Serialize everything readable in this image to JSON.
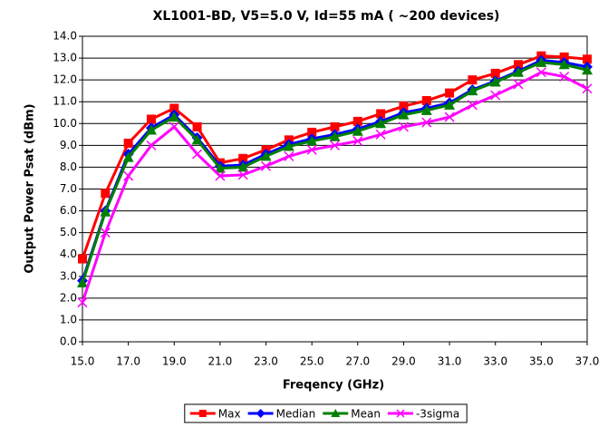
{
  "chart_data": {
    "type": "line",
    "title": "XL1001-BD, V5=5.0 V, Id=55 mA ( ~200 devices)",
    "xlabel": "Freqency (GHz)",
    "ylabel": "Output Power Psat (dBm)",
    "x": [
      15,
      16,
      17,
      18,
      19,
      20,
      21,
      22,
      23,
      24,
      25,
      26,
      27,
      28,
      29,
      30,
      31,
      32,
      33,
      34,
      35,
      36,
      37
    ],
    "series": [
      {
        "name": "Max",
        "color": "#ff0000",
        "marker": "square",
        "values": [
          3.8,
          6.8,
          9.1,
          10.2,
          10.7,
          9.85,
          8.2,
          8.4,
          8.8,
          9.25,
          9.6,
          9.85,
          10.1,
          10.45,
          10.8,
          11.05,
          11.4,
          12.0,
          12.3,
          12.7,
          13.1,
          13.05,
          12.95
        ]
      },
      {
        "name": "Median",
        "color": "#0000ff",
        "marker": "diamond",
        "values": [
          2.8,
          6.0,
          8.6,
          9.8,
          10.4,
          9.35,
          8.05,
          8.1,
          8.6,
          9.05,
          9.3,
          9.5,
          9.75,
          10.1,
          10.5,
          10.7,
          10.95,
          11.55,
          11.95,
          12.4,
          12.9,
          12.8,
          12.6
        ]
      },
      {
        "name": "Mean",
        "color": "#008000",
        "marker": "triangle",
        "values": [
          2.7,
          5.95,
          8.45,
          9.7,
          10.3,
          9.25,
          7.95,
          8.0,
          8.5,
          8.95,
          9.2,
          9.4,
          9.65,
          10.0,
          10.4,
          10.6,
          10.85,
          11.5,
          11.9,
          12.35,
          12.8,
          12.7,
          12.45
        ]
      },
      {
        "name": "-3sigma",
        "color": "#ff00ff",
        "marker": "x",
        "values": [
          1.8,
          5.0,
          7.6,
          9.0,
          9.85,
          8.6,
          7.6,
          7.65,
          8.05,
          8.5,
          8.8,
          9.0,
          9.2,
          9.5,
          9.85,
          10.05,
          10.3,
          10.85,
          11.3,
          11.8,
          12.35,
          12.15,
          11.6
        ]
      }
    ],
    "xlim": [
      15,
      37
    ],
    "xticks": [
      {
        "value": 15,
        "label": "15.0"
      },
      {
        "value": 17,
        "label": "17.0"
      },
      {
        "value": 19,
        "label": "19.0"
      },
      {
        "value": 21,
        "label": "21.0"
      },
      {
        "value": 23,
        "label": "23.0"
      },
      {
        "value": 25,
        "label": "25.0"
      },
      {
        "value": 27,
        "label": "27.0"
      },
      {
        "value": 29,
        "label": "29.0"
      },
      {
        "value": 31,
        "label": "31.0"
      },
      {
        "value": 33,
        "label": "33.0"
      },
      {
        "value": 35,
        "label": "35.0"
      },
      {
        "value": 37,
        "label": "37.0"
      }
    ],
    "ylim": [
      0,
      14
    ],
    "yticks": [
      {
        "value": 0,
        "label": "0.0"
      },
      {
        "value": 1,
        "label": "1.0"
      },
      {
        "value": 2,
        "label": "2.0"
      },
      {
        "value": 3,
        "label": "3.0"
      },
      {
        "value": 4,
        "label": "4.0"
      },
      {
        "value": 5,
        "label": "5.0"
      },
      {
        "value": 6,
        "label": "6.0"
      },
      {
        "value": 7,
        "label": "7.0"
      },
      {
        "value": 8,
        "label": "8.0"
      },
      {
        "value": 9,
        "label": "9.0"
      },
      {
        "value": 10,
        "label": "10.0"
      },
      {
        "value": 11,
        "label": "11.0"
      },
      {
        "value": 12,
        "label": "12.0"
      },
      {
        "value": 13,
        "label": "13.0"
      },
      {
        "value": 14,
        "label": "14.0"
      }
    ],
    "grid": true,
    "legend": "bottom"
  }
}
